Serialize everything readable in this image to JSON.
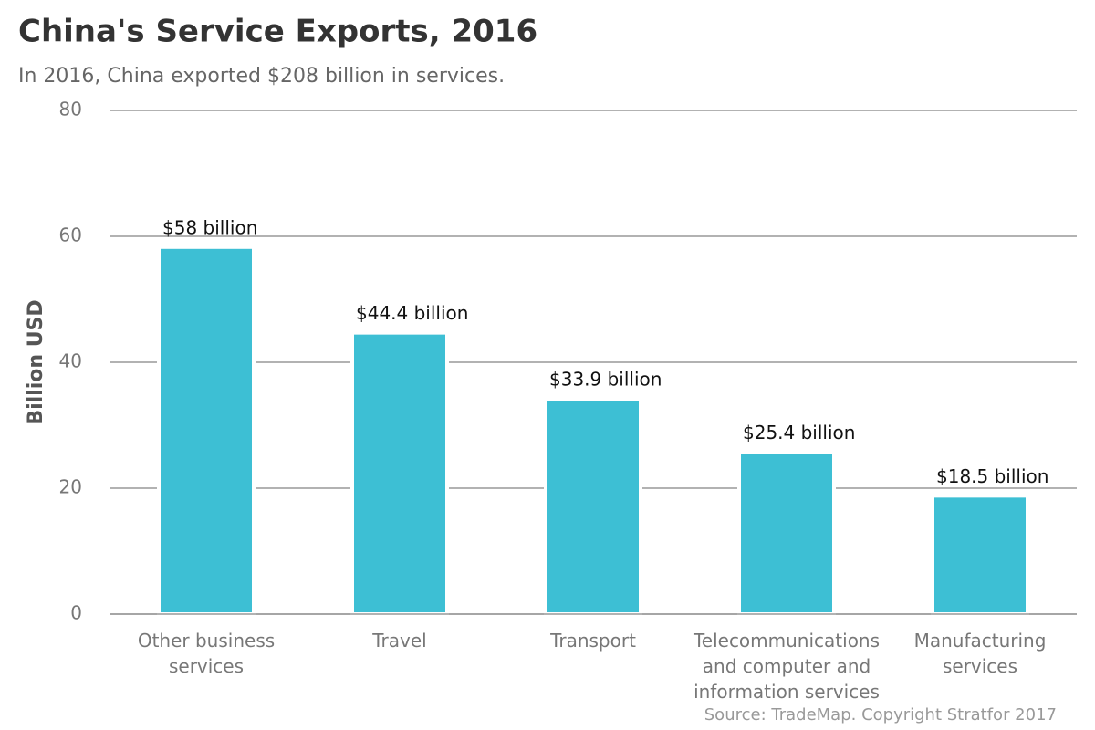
{
  "chart_data": {
    "type": "bar",
    "title": "China's Service Exports, 2016",
    "subtitle": "In 2016, China exported $208 billion in services.",
    "y_label": "Billion USD",
    "source": "Source: TradeMap. Copyright Stratfor 2017",
    "categories": [
      "Other business services",
      "Travel",
      "Transport",
      "Telecommunications and computer and information services",
      "Manufacturing services"
    ],
    "values": [
      58,
      44.4,
      33.9,
      25.4,
      18.5
    ],
    "value_labels": [
      "$58 billion",
      "$44.4 billion",
      "$33.9 billion",
      "$25.4 billion",
      "$18.5 billion"
    ],
    "color": "#3dbfd4",
    "ylim": [
      0,
      80
    ],
    "yticks": [
      0,
      20,
      40,
      60,
      80
    ],
    "grid": true
  }
}
